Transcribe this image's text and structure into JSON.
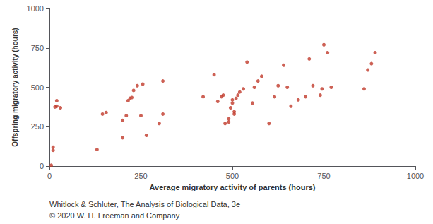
{
  "chart_data": {
    "type": "scatter",
    "x": [
      5,
      10,
      10,
      15,
      20,
      20,
      30,
      130,
      145,
      155,
      200,
      200,
      210,
      215,
      220,
      225,
      230,
      240,
      250,
      255,
      265,
      300,
      310,
      310,
      420,
      450,
      460,
      470,
      475,
      480,
      490,
      490,
      495,
      500,
      500,
      505,
      505,
      510,
      515,
      520,
      530,
      540,
      555,
      560,
      570,
      580,
      600,
      615,
      625,
      640,
      650,
      660,
      680,
      700,
      710,
      720,
      740,
      745,
      750,
      760,
      770,
      860,
      870,
      880,
      890
    ],
    "values": [
      5,
      100,
      120,
      375,
      380,
      415,
      370,
      105,
      330,
      340,
      180,
      290,
      320,
      415,
      430,
      435,
      480,
      510,
      320,
      520,
      195,
      270,
      330,
      540,
      440,
      580,
      410,
      440,
      450,
      270,
      280,
      300,
      370,
      400,
      420,
      330,
      345,
      430,
      450,
      470,
      490,
      660,
      400,
      500,
      540,
      570,
      270,
      440,
      510,
      640,
      500,
      380,
      420,
      440,
      680,
      510,
      450,
      490,
      770,
      720,
      500,
      490,
      610,
      650,
      720
    ],
    "color": "#C0392B",
    "xlabel": "Average migratory activity of parents (hours)",
    "ylabel": "Offspring migratory activity (hours)",
    "xlim": [
      0,
      1000
    ],
    "ylim": [
      0,
      1000
    ],
    "xticks": [
      0,
      250,
      500,
      750,
      1000
    ],
    "yticks": [
      0,
      250,
      500,
      750,
      1000
    ],
    "grid": false,
    "annotations": [
      "Whitlock & Schluter, The Analysis of Biological Data, 3e",
      "© 2020 W. H. Freeman and Company"
    ]
  }
}
